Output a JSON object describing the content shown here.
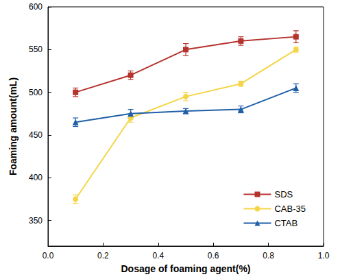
{
  "chart_data": {
    "type": "line",
    "x_label": "Dosage of foaming agent(%)",
    "y_label": "Foaming amount(mL)",
    "x": [
      0.1,
      0.3,
      0.5,
      0.7,
      0.9
    ],
    "xlim": [
      0,
      1
    ],
    "xticks": [
      {
        "value": 0,
        "label": "0.0"
      },
      0.2,
      0.4,
      0.6,
      0.8,
      {
        "value": 1,
        "label": "1.0"
      }
    ],
    "ylim": [
      320,
      600
    ],
    "yticks": [
      350,
      400,
      450,
      500,
      550,
      600
    ],
    "grid": false,
    "legend": "lower right",
    "series": [
      {
        "name": "SDS",
        "color": "#b5322d",
        "marker": "square",
        "values": [
          500,
          520,
          550,
          560,
          565
        ],
        "errors": [
          5,
          5,
          7,
          5,
          7
        ]
      },
      {
        "name": "CAB-35",
        "color": "#f5d547",
        "marker": "circle",
        "values": [
          375,
          470,
          495,
          510,
          550
        ],
        "errors": [
          5,
          5,
          5,
          3,
          3
        ]
      },
      {
        "name": "CTAB",
        "color": "#1f5fa8",
        "marker": "triangle",
        "values": [
          465,
          475,
          478,
          480,
          505
        ],
        "errors": [
          5,
          5,
          3,
          4,
          5
        ]
      }
    ]
  }
}
